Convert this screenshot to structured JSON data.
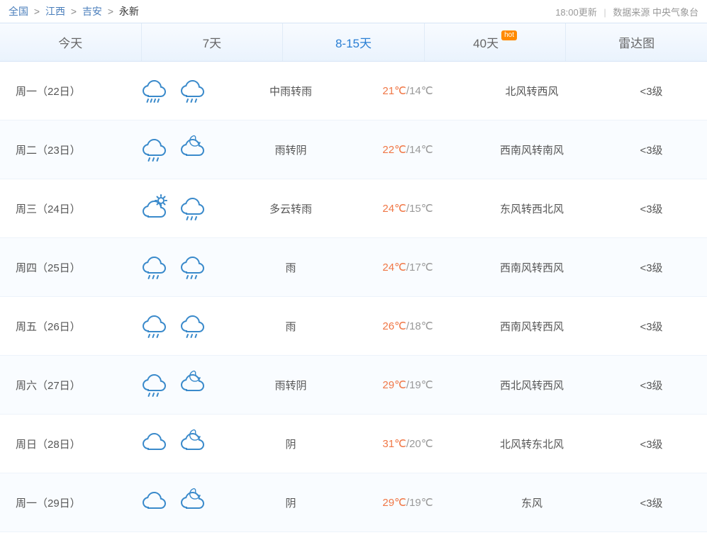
{
  "breadcrumb": {
    "items": [
      "全国",
      "江西",
      "吉安",
      "永新"
    ],
    "update": "18:00更新",
    "source": "数据来源 中央气象台"
  },
  "tabs": {
    "items": [
      {
        "label": "今天",
        "active": false,
        "hot": false
      },
      {
        "label": "7天",
        "active": false,
        "hot": false
      },
      {
        "label": "8-15天",
        "active": true,
        "hot": false
      },
      {
        "label": "40天",
        "active": false,
        "hot": true
      },
      {
        "label": "雷达图",
        "active": false,
        "hot": false
      }
    ],
    "hot_text": "hot"
  },
  "icons": {
    "stroke": "#3a8acb",
    "stroke_width": 2
  },
  "forecast": [
    {
      "date": "周一（22日）",
      "icon1": "rain-medium",
      "icon2": "rain",
      "cond": "中雨转雨",
      "hi": "21℃",
      "lo": "/14℃",
      "wind": "北风转西风",
      "level": "<3级"
    },
    {
      "date": "周二（23日）",
      "icon1": "rain",
      "icon2": "overcast-night",
      "cond": "雨转阴",
      "hi": "22℃",
      "lo": "/14℃",
      "wind": "西南风转南风",
      "level": "<3级"
    },
    {
      "date": "周三（24日）",
      "icon1": "partly-cloudy-day",
      "icon2": "rain",
      "cond": "多云转雨",
      "hi": "24℃",
      "lo": "/15℃",
      "wind": "东风转西北风",
      "level": "<3级"
    },
    {
      "date": "周四（25日）",
      "icon1": "rain",
      "icon2": "rain",
      "cond": "雨",
      "hi": "24℃",
      "lo": "/17℃",
      "wind": "西南风转西风",
      "level": "<3级"
    },
    {
      "date": "周五（26日）",
      "icon1": "rain",
      "icon2": "rain",
      "cond": "雨",
      "hi": "26℃",
      "lo": "/18℃",
      "wind": "西南风转西风",
      "level": "<3级"
    },
    {
      "date": "周六（27日）",
      "icon1": "rain",
      "icon2": "overcast-night",
      "cond": "雨转阴",
      "hi": "29℃",
      "lo": "/19℃",
      "wind": "西北风转西风",
      "level": "<3级"
    },
    {
      "date": "周日（28日）",
      "icon1": "cloudy",
      "icon2": "overcast-night",
      "cond": "阴",
      "hi": "31℃",
      "lo": "/20℃",
      "wind": "北风转东北风",
      "level": "<3级"
    },
    {
      "date": "周一（29日）",
      "icon1": "cloudy",
      "icon2": "overcast-night",
      "cond": "阴",
      "hi": "29℃",
      "lo": "/19℃",
      "wind": "东风",
      "level": "<3级"
    }
  ],
  "colors": {
    "link": "#4a7ebb",
    "active_tab": "#2a7fd4",
    "hi_temp": "#f07746",
    "lo_temp": "#999999",
    "row_alt_bg": "#f9fcff",
    "tab_bg_top": "#f8fbff",
    "tab_bg_bottom": "#eaf3fd",
    "border": "#d6e4f5",
    "hot_badge": "#ff8a00"
  }
}
